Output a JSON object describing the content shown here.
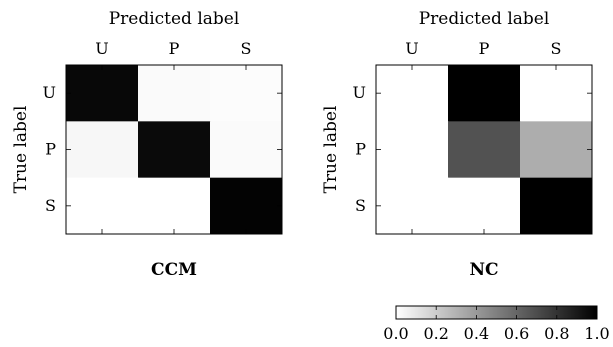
{
  "chart_data": [
    {
      "type": "heatmap",
      "title": "CCM",
      "xlabel": "Predicted label",
      "ylabel": "True label",
      "x_categories": [
        "U",
        "P",
        "S"
      ],
      "y_categories": [
        "U",
        "P",
        "S"
      ],
      "values": [
        [
          0.97,
          0.02,
          0.01
        ],
        [
          0.03,
          0.96,
          0.02
        ],
        [
          0.0,
          0.0,
          0.99
        ]
      ]
    },
    {
      "type": "heatmap",
      "title": "NC",
      "xlabel": "Predicted label",
      "ylabel": "True label",
      "x_categories": [
        "U",
        "P",
        "S"
      ],
      "y_categories": [
        "U",
        "P",
        "S"
      ],
      "values": [
        [
          0.0,
          1.0,
          0.0
        ],
        [
          0.0,
          0.68,
          0.32
        ],
        [
          0.0,
          0.0,
          1.0
        ]
      ]
    }
  ],
  "colorbar": {
    "range": [
      0.0,
      1.0
    ],
    "tick_labels": [
      "0.0",
      "0.2",
      "0.4",
      "0.6",
      "0.8",
      "1.0"
    ],
    "low_color": "#ffffff",
    "high_color": "#000000"
  }
}
